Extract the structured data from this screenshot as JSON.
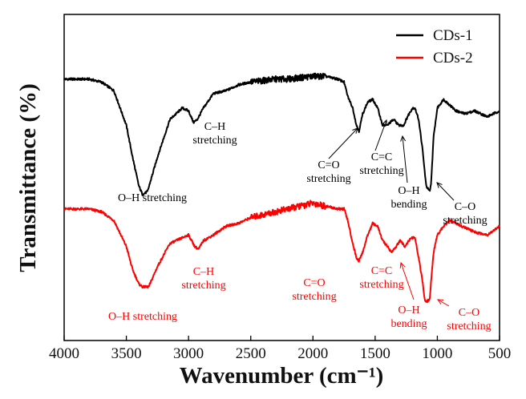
{
  "chart_data": {
    "type": "line",
    "xlabel": "Wavenumber (cm⁻¹)",
    "ylabel": "Transmittance (%)",
    "xlim": [
      4000,
      500
    ],
    "x_ticks": [
      4000,
      3500,
      3000,
      2500,
      2000,
      1500,
      1000,
      500
    ],
    "x_tick_labels": [
      "4000",
      "3500",
      "3000",
      "2500",
      "2000",
      "1500",
      "1000",
      "500"
    ],
    "y_ticks_shown": false,
    "legend_position": "top-right",
    "series": [
      {
        "name": "CDs-1",
        "color": "#000000",
        "points": [
          [
            4000,
            82
          ],
          [
            3800,
            82
          ],
          [
            3700,
            81
          ],
          [
            3600,
            78
          ],
          [
            3500,
            66
          ],
          [
            3450,
            55
          ],
          [
            3400,
            45
          ],
          [
            3370,
            42
          ],
          [
            3330,
            43
          ],
          [
            3250,
            55
          ],
          [
            3150,
            68
          ],
          [
            3050,
            72
          ],
          [
            3000,
            71
          ],
          [
            2960,
            67
          ],
          [
            2930,
            68
          ],
          [
            2880,
            72
          ],
          [
            2800,
            77
          ],
          [
            2700,
            78
          ],
          [
            2600,
            80
          ],
          [
            2500,
            81
          ],
          [
            2300,
            82
          ],
          [
            2200,
            82
          ],
          [
            2000,
            83
          ],
          [
            1900,
            83
          ],
          [
            1800,
            82
          ],
          [
            1750,
            81
          ],
          [
            1720,
            76
          ],
          [
            1680,
            72
          ],
          [
            1650,
            66
          ],
          [
            1630,
            64
          ],
          [
            1600,
            70
          ],
          [
            1560,
            74
          ],
          [
            1520,
            75
          ],
          [
            1480,
            72
          ],
          [
            1440,
            66
          ],
          [
            1400,
            66
          ],
          [
            1380,
            67
          ],
          [
            1350,
            68
          ],
          [
            1310,
            66
          ],
          [
            1270,
            66
          ],
          [
            1240,
            69
          ],
          [
            1200,
            72
          ],
          [
            1180,
            72
          ],
          [
            1150,
            68
          ],
          [
            1120,
            58
          ],
          [
            1090,
            45
          ],
          [
            1060,
            43
          ],
          [
            1050,
            46
          ],
          [
            1030,
            62
          ],
          [
            1000,
            72
          ],
          [
            950,
            75
          ],
          [
            900,
            73
          ],
          [
            850,
            71
          ],
          [
            780,
            70
          ],
          [
            700,
            71
          ],
          [
            600,
            69
          ],
          [
            500,
            71
          ]
        ],
        "annotations": [
          {
            "label": "C–H\nstretching"
          },
          {
            "label": "O–H stretching"
          },
          {
            "label": "C=O\nstretching"
          },
          {
            "label": "C=C\nstretching"
          },
          {
            "label": "O–H\nbending"
          },
          {
            "label": "C–O\nstretching"
          }
        ]
      },
      {
        "name": "CDs-2",
        "color": "#ff0000",
        "points": [
          [
            4000,
            37
          ],
          [
            3800,
            37
          ],
          [
            3700,
            36
          ],
          [
            3600,
            33
          ],
          [
            3500,
            24
          ],
          [
            3450,
            16
          ],
          [
            3400,
            11
          ],
          [
            3370,
            10
          ],
          [
            3320,
            10
          ],
          [
            3250,
            17
          ],
          [
            3150,
            25
          ],
          [
            3050,
            27
          ],
          [
            3000,
            28
          ],
          [
            2950,
            24
          ],
          [
            2920,
            23
          ],
          [
            2880,
            26
          ],
          [
            2800,
            28
          ],
          [
            2700,
            31
          ],
          [
            2600,
            32
          ],
          [
            2500,
            34
          ],
          [
            2300,
            36
          ],
          [
            2200,
            37
          ],
          [
            2000,
            39
          ],
          [
            1900,
            38
          ],
          [
            1800,
            37
          ],
          [
            1750,
            37
          ],
          [
            1720,
            33
          ],
          [
            1680,
            25
          ],
          [
            1650,
            20
          ],
          [
            1630,
            19
          ],
          [
            1600,
            22
          ],
          [
            1560,
            28
          ],
          [
            1520,
            32
          ],
          [
            1480,
            31
          ],
          [
            1440,
            26
          ],
          [
            1400,
            24
          ],
          [
            1370,
            22
          ],
          [
            1330,
            24
          ],
          [
            1300,
            26
          ],
          [
            1260,
            24
          ],
          [
            1230,
            26
          ],
          [
            1200,
            27
          ],
          [
            1180,
            27
          ],
          [
            1150,
            20
          ],
          [
            1120,
            12
          ],
          [
            1100,
            5
          ],
          [
            1080,
            5
          ],
          [
            1060,
            6
          ],
          [
            1050,
            12
          ],
          [
            1030,
            22
          ],
          [
            1000,
            28
          ],
          [
            950,
            31
          ],
          [
            900,
            33
          ],
          [
            850,
            32
          ],
          [
            800,
            31
          ],
          [
            700,
            29
          ],
          [
            600,
            28
          ],
          [
            500,
            31
          ]
        ],
        "annotations": [
          {
            "label": "C–H\nstretching"
          },
          {
            "label": "O–H stretching"
          },
          {
            "label": "C=O\nstretching"
          },
          {
            "label": "C=C\nstretching"
          },
          {
            "label": "O–H\nbending"
          },
          {
            "label": "C–O\nstretching"
          }
        ]
      }
    ]
  }
}
